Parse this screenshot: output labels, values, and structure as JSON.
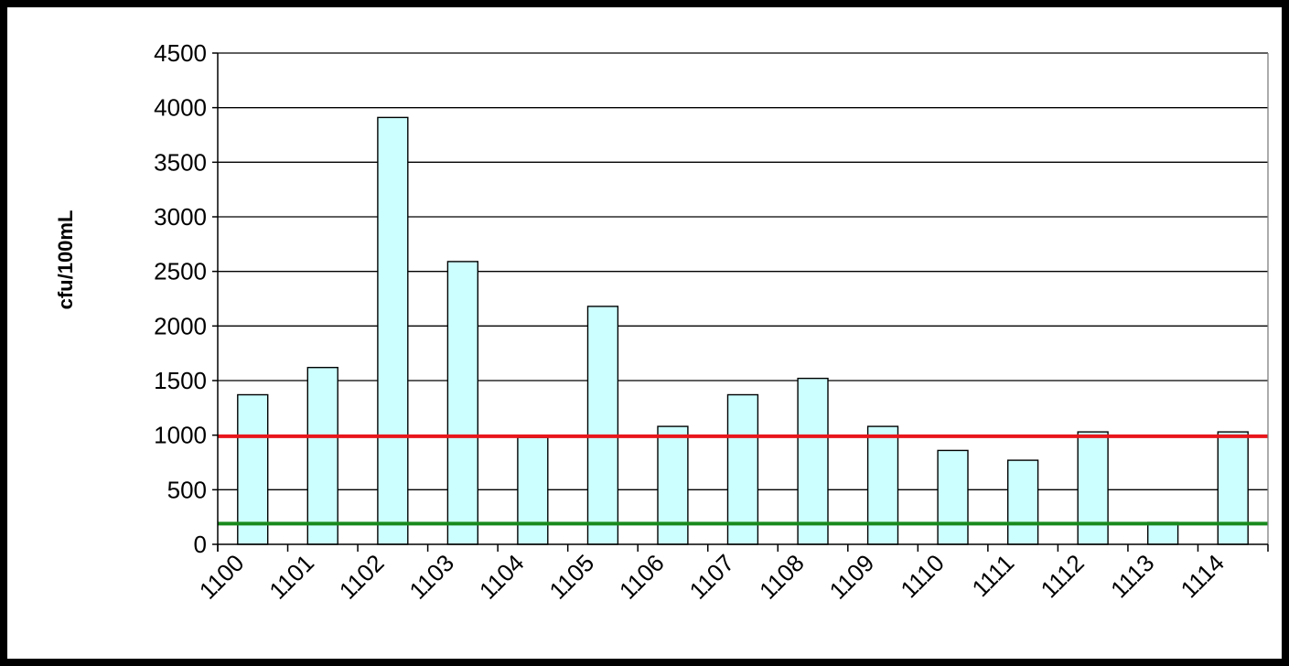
{
  "chart_data": {
    "type": "bar",
    "categories": [
      "1100",
      "1101",
      "1102",
      "1103",
      "1104",
      "1105",
      "1106",
      "1107",
      "1108",
      "1109",
      "1110",
      "1111",
      "1112",
      "1113",
      "1114"
    ],
    "series": [
      {
        "values": [
          1370,
          1620,
          3910,
          2590,
          980,
          2180,
          1080,
          1370,
          1520,
          1080,
          860,
          770,
          1030,
          200,
          1030
        ]
      }
    ],
    "reference_lines": [
      {
        "value": 990,
        "color": "#e8161b"
      },
      {
        "value": 190,
        "color": "#198a1e"
      }
    ],
    "title": "",
    "xlabel": "",
    "ylabel": "cfu/100mL",
    "ylim": [
      0,
      4500
    ],
    "yticks": [
      0,
      500,
      1000,
      1500,
      2000,
      2500,
      3000,
      3500,
      4000,
      4500
    ],
    "grid": "horizontal",
    "legend": "none",
    "colors": {
      "bar_fill": "#ccffff",
      "bar_stroke": "#000000",
      "grid": "#000000",
      "plot_border": "#808080"
    }
  }
}
